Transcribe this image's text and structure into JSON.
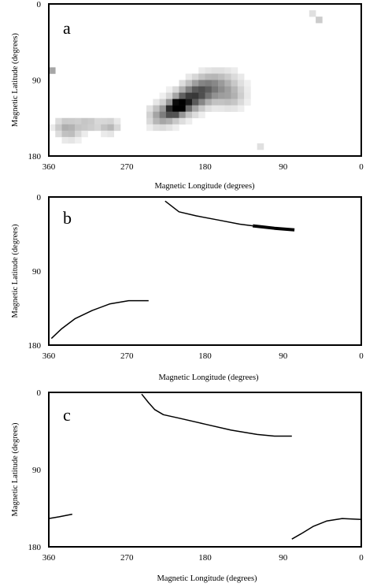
{
  "chart_data": [
    {
      "panel": "a",
      "type": "heatmap",
      "xlabel": "Magnetic Longitude (degrees)",
      "ylabel": "Magnetic Latitude (degrees)",
      "xlim": [
        360,
        0
      ],
      "ylim": [
        180,
        0
      ],
      "x_ticks": [
        "360",
        "270",
        "180",
        "90",
        "0"
      ],
      "y_ticks": [
        "0",
        "90",
        "180"
      ],
      "colormap": "white-to-black density",
      "grid": false,
      "cell_size_degrees": 7.5,
      "blobs": [
        {
          "lon": 212,
          "lat": 122,
          "sx": 8,
          "sy": 5,
          "rot": 0.6,
          "peak": 0.95
        },
        {
          "lon": 200,
          "lat": 115,
          "sx": 22,
          "sy": 10,
          "rot": 0.6,
          "peak": 0.6
        },
        {
          "lon": 175,
          "lat": 100,
          "sx": 22,
          "sy": 12,
          "rot": 0.3,
          "peak": 0.35
        },
        {
          "lon": 150,
          "lat": 110,
          "sx": 12,
          "sy": 10,
          "rot": 0.0,
          "peak": 0.25
        },
        {
          "lon": 232,
          "lat": 132,
          "sx": 10,
          "sy": 9,
          "rot": 0.0,
          "peak": 0.28
        },
        {
          "lon": 340,
          "lat": 145,
          "sx": 10,
          "sy": 7,
          "rot": 0.0,
          "peak": 0.3
        },
        {
          "lon": 315,
          "lat": 142,
          "sx": 10,
          "sy": 6,
          "rot": 0.0,
          "peak": 0.25
        },
        {
          "lon": 290,
          "lat": 145,
          "sx": 8,
          "sy": 6,
          "rot": 0.0,
          "peak": 0.28
        },
        {
          "lon": 335,
          "lat": 156,
          "sx": 9,
          "sy": 5,
          "rot": 0.0,
          "peak": 0.15
        }
      ],
      "isolated_cells": [
        {
          "lon": 60,
          "lat": 8,
          "value": 0.12
        },
        {
          "lon": 52,
          "lat": 15,
          "value": 0.2
        },
        {
          "lon": 48,
          "lat": 20,
          "value": 0.15
        },
        {
          "lon": 120,
          "lat": 170,
          "value": 0.12
        },
        {
          "lon": 357,
          "lat": 75,
          "value": 0.35
        }
      ]
    },
    {
      "panel": "b",
      "type": "line",
      "xlabel": "Magnetic Longitude (degrees)",
      "ylabel": "Magnetic Latitude (degrees)",
      "xlim": [
        360,
        0
      ],
      "ylim": [
        180,
        0
      ],
      "x_ticks": [
        "360",
        "270",
        "180",
        "90",
        "0"
      ],
      "y_ticks": [
        "0",
        "90",
        "180"
      ],
      "grid": false,
      "series": [
        {
          "values": [
            [
              226,
              5
            ],
            [
              210,
              18
            ],
            [
              190,
              23
            ],
            [
              165,
              28
            ],
            [
              140,
              33
            ],
            [
              125,
              35
            ]
          ],
          "width": 1.5
        },
        {
          "values": [
            [
              125,
              35
            ],
            [
              100,
              38
            ],
            [
              77,
              40
            ]
          ],
          "width": 4
        },
        {
          "values": [
            [
              357,
              172
            ],
            [
              345,
              160
            ],
            [
              330,
              148
            ],
            [
              310,
              138
            ],
            [
              290,
              130
            ],
            [
              268,
              126
            ],
            [
              245,
              126
            ]
          ],
          "width": 1.5
        }
      ]
    },
    {
      "panel": "c",
      "type": "line",
      "xlabel": "Magnetic Longitude (degrees)",
      "ylabel": "Magnetic Latitude (degrees)",
      "xlim": [
        360,
        0
      ],
      "ylim": [
        180,
        0
      ],
      "x_ticks": [
        "360",
        "270",
        "180",
        "90",
        "0"
      ],
      "y_ticks": [
        "0",
        "90",
        "180"
      ],
      "grid": false,
      "series": [
        {
          "values": [
            [
              253,
              2
            ],
            [
              245,
              12
            ],
            [
              238,
              20
            ],
            [
              228,
              26
            ],
            [
              210,
              30
            ],
            [
              180,
              37
            ],
            [
              150,
              44
            ],
            [
              120,
              49
            ],
            [
              100,
              51
            ],
            [
              80,
              51
            ]
          ],
          "width": 1.5
        },
        {
          "values": [
            [
              360,
              147
            ],
            [
              348,
              145
            ],
            [
              333,
              142
            ]
          ],
          "width": 1.5
        },
        {
          "values": [
            [
              80,
              171
            ],
            [
              68,
              164
            ],
            [
              55,
              156
            ],
            [
              40,
              150
            ],
            [
              22,
              147
            ],
            [
              0,
              148
            ]
          ],
          "width": 1.5
        }
      ]
    }
  ]
}
